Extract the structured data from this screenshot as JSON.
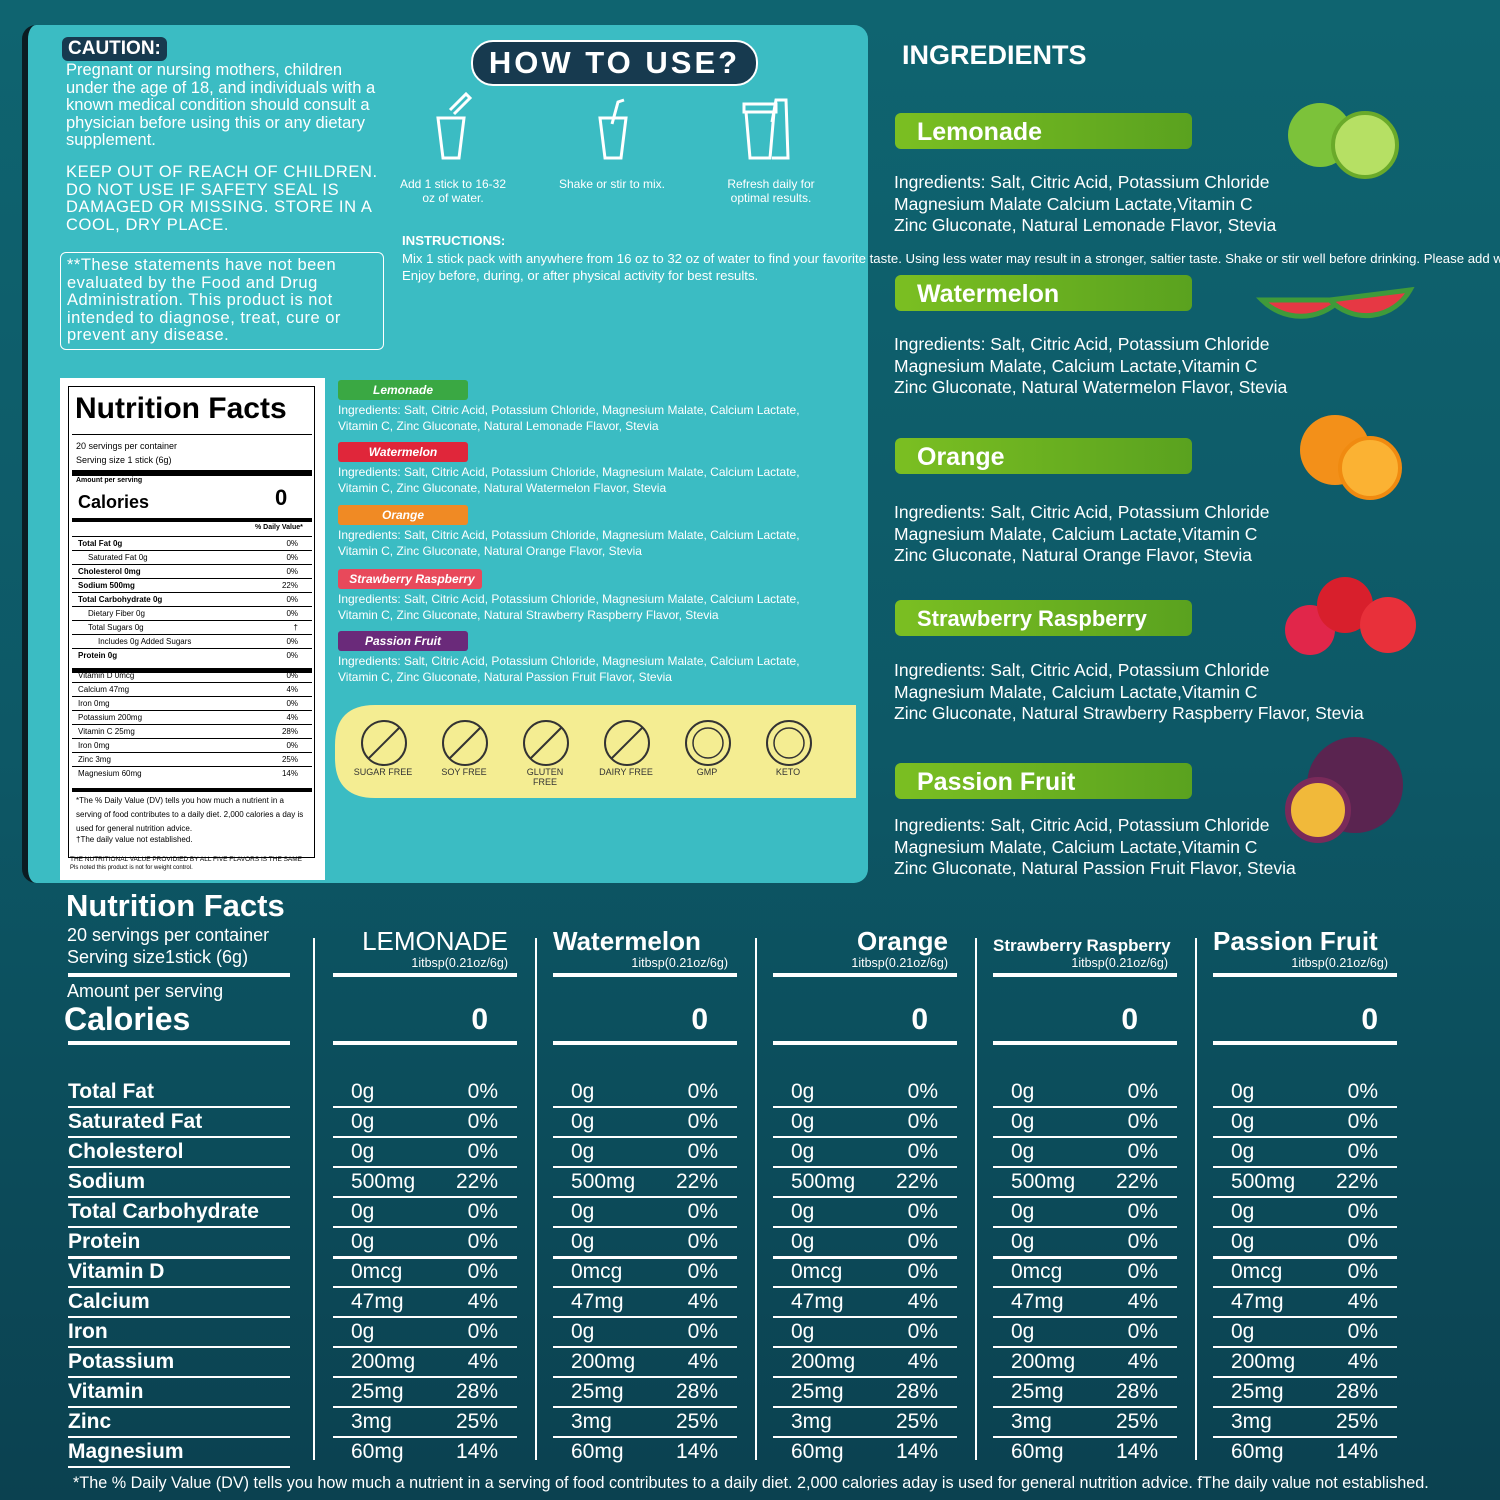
{
  "caution": {
    "title": "CAUTION:",
    "text": "Pregnant or nursing mothers, children under the age of 18, and individuals with a known medical condition should consult a physician before using this or any dietary supplement.",
    "warning": "KEEP OUT OF REACH OF CHILDREN. DO NOT USE IF SAFETY SEAL IS DAMAGED OR MISSING. STORE IN A COOL, DRY PLACE.",
    "disclaimer": "**These statements have not been evaluated by the Food and Drug Administration. This product is not intended to diagnose, treat, cure or prevent any disease."
  },
  "how_to_use": {
    "title": "HOW TO USE?",
    "steps": [
      "Add 1 stick to 16-32 oz of water.",
      "Shake or stir to mix.",
      "Refresh daily for optimal results."
    ],
    "instructions_label": "INSTRUCTIONS:",
    "instructions": "Mix 1 stick pack with anywhere from 16 oz to 32 oz of water to find your favorite taste. Using less water may result in a stronger, saltier taste. Shake or stir well before drinking. Please add water first, then pour in the electrolyte powder. Shake or stir for fast dissolution!",
    "note": "Enjoy before, during, or after physical activity for best results."
  },
  "label": {
    "title": "Nutrition Facts",
    "servings": "20 servings per container",
    "serving_size": "Serving size 1 stick (6g)",
    "amount": "Amount per serving",
    "calories_label": "Calories",
    "calories": "0",
    "dv_header": "% Daily Value*",
    "rows": [
      {
        "label": "Total Fat 0g",
        "dv": "0%"
      },
      {
        "label": "Saturated Fat 0g",
        "dv": "0%"
      },
      {
        "label": "Cholesterol 0mg",
        "dv": "0%"
      },
      {
        "label": "Sodium 500mg",
        "dv": "22%"
      },
      {
        "label": "Total Carbohydrate 0g",
        "dv": "0%"
      },
      {
        "label": "Dietary Fiber 0g",
        "dv": "0%"
      },
      {
        "label": "Total Sugars 0g",
        "dv": "†"
      },
      {
        "label": "Includes 0g Added Sugars",
        "dv": "0%"
      },
      {
        "label": "Protein 0g",
        "dv": "0%"
      },
      {
        "label": "Vitamin D 0mcg",
        "dv": "0%"
      },
      {
        "label": "Calcium 47mg",
        "dv": "4%"
      },
      {
        "label": "Iron 0mg",
        "dv": "0%"
      },
      {
        "label": "Potassium 200mg",
        "dv": "4%"
      },
      {
        "label": "Vitamin C 25mg",
        "dv": "28%"
      },
      {
        "label": "Iron 0mg",
        "dv": "0%"
      },
      {
        "label": "Zinc 3mg",
        "dv": "25%"
      },
      {
        "label": "Magnesium 60mg",
        "dv": "14%"
      }
    ],
    "footnote": "*The % Daily Value (DV) tells you how much a nutrient in a serving of food contributes to a daily diet. 2,000 calories a day is used for general nutrition advice.",
    "dagger": "†The daily value not established.",
    "bottom_note": "THE NUTRITIONAL VALUE PROVIDIED BY ALL FIVE FLAVORS IS THE SAME",
    "bottom_note2": "Pls noted this product is not for weight control."
  },
  "flavors": [
    {
      "name": "Lemonade",
      "lines": [
        "Ingredients: Salt, Citric Acid, Potassium Chloride, Magnesium Malate, Calcium Lactate,",
        "Vitamin C, Zinc Gluconate, Natural Lemonade Flavor, Stevia"
      ]
    },
    {
      "name": "Watermelon",
      "lines": [
        "Ingredients: Salt, Citric Acid, Potassium Chloride, Magnesium Malate, Calcium Lactate,",
        "Vitamin C, Zinc Gluconate, Natural Watermelon Flavor, Stevia"
      ]
    },
    {
      "name": "Orange",
      "lines": [
        "Ingredients: Salt, Citric Acid, Potassium Chloride, Magnesium Malate, Calcium Lactate,",
        "Vitamin C, Zinc Gluconate, Natural Orange Flavor, Stevia"
      ]
    },
    {
      "name": "Strawberry Raspberry",
      "lines": [
        "Ingredients: Salt, Citric Acid, Potassium Chloride, Magnesium Malate, Calcium Lactate,",
        "Vitamin C, Zinc Gluconate, Natural Strawberry Raspberry Flavor, Stevia"
      ]
    },
    {
      "name": "Passion Fruit",
      "lines": [
        "Ingredients: Salt, Citric Acid, Potassium Chloride, Magnesium Malate, Calcium Lactate,",
        "Vitamin C, Zinc Gluconate, Natural Passion Fruit Flavor, Stevia"
      ]
    }
  ],
  "badges": [
    "SUGAR FREE",
    "SOY FREE",
    "GLUTEN FREE",
    "DAIRY FREE",
    "GMP",
    "KETO"
  ],
  "ingredients": {
    "title": "INGREDIENTS",
    "items": [
      {
        "name": "Lemonade",
        "lines": [
          "Ingredients: Salt, Citric Acid, Potassium Chloride",
          "Magnesium Malate Calcium Lactate,Vitamin C",
          "Zinc Gluconate, Natural Lemonade Flavor, Stevia"
        ]
      },
      {
        "name": "Watermelon",
        "lines": [
          "Ingredients: Salt, Citric Acid, Potassium Chloride",
          "Magnesium Malate, Calcium Lactate,Vitamin C",
          "Zinc Gluconate, Natural Watermelon Flavor, Stevia"
        ]
      },
      {
        "name": "Orange",
        "lines": [
          "Ingredients: Salt, Citric Acid, Potassium Chloride",
          "Magnesium Malate, Calcium Lactate,Vitamin C",
          "Zinc Gluconate, Natural Orange Flavor, Stevia"
        ]
      },
      {
        "name": "Strawberry Raspberry",
        "lines": [
          "Ingredients: Salt, Citric Acid, Potassium Chloride",
          "Magnesium Malate, Calcium Lactate,Vitamin C",
          "Zinc Gluconate, Natural Strawberry Raspberry Flavor, Stevia"
        ]
      },
      {
        "name": "Passion Fruit",
        "lines": [
          "Ingredients: Salt, Citric Acid, Potassium Chloride",
          "Magnesium Malate, Calcium Lactate,Vitamin C",
          "Zinc Gluconate, Natural Passion Fruit Flavor, Stevia"
        ]
      }
    ]
  },
  "table": {
    "title": "Nutrition Facts",
    "servings": "20 servings per container",
    "serving_size": "Serving size1stick (6g)",
    "amount": "Amount per serving",
    "calories_label": "Calories",
    "columns": [
      {
        "name": "LEMONADE",
        "serving": "1itbsp(0.21oz/6g)",
        "calories": "0"
      },
      {
        "name": "Watermelon",
        "serving": "1itbsp(0.21oz/6g)",
        "calories": "0"
      },
      {
        "name": "Orange",
        "serving": "1itbsp(0.21oz/6g)",
        "calories": "0"
      },
      {
        "name": "Strawberry Raspberry",
        "serving": "1itbsp(0.21oz/6g)",
        "calories": "0"
      },
      {
        "name": "Passion Fruit",
        "serving": "1itbsp(0.21oz/6g)",
        "calories": "0"
      }
    ],
    "rows": [
      {
        "label": "Total Fat",
        "cells": [
          "0g",
          "0%",
          "0g",
          "0%",
          "0g",
          "0%",
          "0g",
          "0%",
          "0g",
          "0%"
        ]
      },
      {
        "label": "Saturated Fat",
        "cells": [
          "0g",
          "0%",
          "0g",
          "0%",
          "0g",
          "0%",
          "0g",
          "0%",
          "0g",
          "0%"
        ]
      },
      {
        "label": "Cholesterol",
        "cells": [
          "0g",
          "0%",
          "0g",
          "0%",
          "0g",
          "0%",
          "0g",
          "0%",
          "0g",
          "0%"
        ]
      },
      {
        "label": "Sodium",
        "cells": [
          "500mg",
          "22%",
          "500mg",
          "22%",
          "500mg",
          "22%",
          "500mg",
          "22%",
          "500mg",
          "22%"
        ]
      },
      {
        "label": "Total Carbohydrate",
        "cells": [
          "0g",
          "0%",
          "0g",
          "0%",
          "0g",
          "0%",
          "0g",
          "0%",
          "0g",
          "0%"
        ]
      },
      {
        "label": "Protein",
        "cells": [
          "0g",
          "0%",
          "0g",
          "0%",
          "0g",
          "0%",
          "0g",
          "0%",
          "0g",
          "0%"
        ]
      },
      {
        "label": "Vitamin D",
        "cells": [
          "0mcg",
          "0%",
          "0mcg",
          "0%",
          "0mcg",
          "0%",
          "0mcg",
          "0%",
          "0mcg",
          "0%"
        ]
      },
      {
        "label": "Calcium",
        "cells": [
          "47mg",
          "4%",
          "47mg",
          "4%",
          "47mg",
          "4%",
          "47mg",
          "4%",
          "47mg",
          "4%"
        ]
      },
      {
        "label": "Iron",
        "cells": [
          "0g",
          "0%",
          "0g",
          "0%",
          "0g",
          "0%",
          "0g",
          "0%",
          "0g",
          "0%"
        ]
      },
      {
        "label": "Potassium",
        "cells": [
          "200mg",
          "4%",
          "200mg",
          "4%",
          "200mg",
          "4%",
          "200mg",
          "4%",
          "200mg",
          "4%"
        ]
      },
      {
        "label": "Vitamin",
        "cells": [
          "25mg",
          "28%",
          "25mg",
          "28%",
          "25mg",
          "28%",
          "25mg",
          "28%",
          "25mg",
          "28%"
        ]
      },
      {
        "label": "Zinc",
        "cells": [
          "3mg",
          "25%",
          "3mg",
          "25%",
          "3mg",
          "25%",
          "3mg",
          "25%",
          "3mg",
          "25%"
        ]
      },
      {
        "label": "Magnesium",
        "cells": [
          "60mg",
          "14%",
          "60mg",
          "14%",
          "60mg",
          "14%",
          "60mg",
          "14%",
          "60mg",
          "14%"
        ]
      }
    ],
    "footnote": "*The % Daily Value (DV) tells you how much a nutrient in a serving of food contributes to a daily diet. 2,000 calories aday is used for general nutrition advice. fThe daily value not established."
  }
}
